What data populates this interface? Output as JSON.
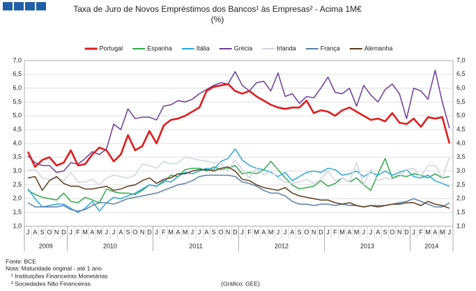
{
  "chart_data": {
    "type": "line",
    "title": "Taxa de Juro de Novos Empréstimos dos Bancos¹ às Empresas² - Acima 1M€",
    "subtitle": "(%)",
    "categories": [
      "J",
      "A",
      "S",
      "O",
      "N",
      "D",
      "J",
      "F",
      "M",
      "A",
      "M",
      "J",
      "J",
      "A",
      "S",
      "O",
      "N",
      "D",
      "J",
      "F",
      "M",
      "A",
      "M",
      "J",
      "J",
      "A",
      "S",
      "O",
      "N",
      "D",
      "J",
      "F",
      "M",
      "A",
      "M",
      "J",
      "J",
      "A",
      "S",
      "O",
      "N",
      "D",
      "J",
      "F",
      "M",
      "A",
      "M",
      "J",
      "J",
      "A",
      "S",
      "O",
      "N",
      "D",
      "J",
      "F",
      "M",
      "A",
      "M",
      "J"
    ],
    "year_spans": [
      {
        "label": "2009",
        "months": 6
      },
      {
        "label": "2010",
        "months": 12
      },
      {
        "label": "2011",
        "months": 12
      },
      {
        "label": "2012",
        "months": 12
      },
      {
        "label": "2013",
        "months": 12
      },
      {
        "label": "2014",
        "months": 6
      }
    ],
    "series": [
      {
        "name": "Portugal",
        "color": "#e31b1b",
        "values": [
          3.7,
          3.15,
          3.4,
          3.5,
          3.2,
          3.3,
          3.75,
          3.2,
          3.25,
          3.6,
          3.85,
          3.75,
          3.35,
          3.6,
          4.3,
          3.75,
          3.9,
          4.45,
          4.0,
          4.65,
          4.85,
          4.9,
          5.0,
          5.15,
          5.3,
          5.9,
          6.05,
          6.1,
          6.15,
          5.9,
          5.8,
          5.9,
          5.7,
          5.55,
          5.4,
          5.3,
          5.25,
          5.3,
          5.3,
          5.55,
          5.1,
          5.2,
          5.15,
          5.0,
          5.2,
          5.3,
          5.15,
          5.0,
          4.85,
          4.9,
          4.8,
          5.1,
          4.75,
          4.7,
          4.9,
          4.6,
          4.95,
          4.9,
          4.95,
          4.0
        ]
      },
      {
        "name": "Espanha",
        "color": "#2eaa4a",
        "values": [
          2.3,
          2.15,
          2.05,
          2.0,
          1.95,
          2.2,
          1.9,
          1.85,
          2.05,
          1.95,
          1.85,
          2.35,
          2.25,
          2.2,
          2.2,
          2.15,
          2.3,
          2.5,
          2.45,
          2.6,
          2.85,
          2.8,
          3.05,
          3.1,
          3.1,
          3.0,
          3.15,
          3.05,
          3.1,
          3.2,
          2.9,
          2.95,
          2.9,
          3.05,
          3.35,
          3.05,
          2.75,
          2.5,
          2.35,
          2.4,
          2.45,
          2.65,
          2.45,
          2.55,
          2.75,
          2.6,
          2.75,
          2.5,
          2.3,
          2.9,
          3.45,
          2.75,
          2.85,
          2.8,
          2.9,
          2.85,
          2.75,
          2.9,
          2.75,
          2.8
        ]
      },
      {
        "name": "Itália",
        "color": "#2aa7dc",
        "values": [
          2.35,
          2.0,
          1.7,
          1.75,
          1.8,
          1.8,
          1.65,
          1.5,
          1.65,
          1.9,
          1.55,
          1.85,
          2.05,
          2.0,
          2.1,
          2.2,
          2.35,
          2.5,
          2.45,
          2.65,
          2.6,
          2.8,
          2.95,
          2.9,
          3.0,
          3.1,
          3.05,
          3.35,
          3.45,
          3.8,
          3.4,
          3.2,
          3.1,
          3.05,
          2.95,
          2.8,
          2.95,
          2.65,
          2.8,
          2.95,
          3.0,
          2.95,
          3.1,
          3.05,
          2.85,
          2.9,
          3.0,
          2.8,
          2.95,
          2.85,
          3.0,
          2.85,
          2.95,
          3.05,
          2.8,
          2.75,
          2.85,
          2.65,
          2.55,
          2.45
        ]
      },
      {
        "name": "Grécia",
        "color": "#6a3d9a",
        "values": [
          3.55,
          3.3,
          3.2,
          3.2,
          2.95,
          3.0,
          3.3,
          3.25,
          3.45,
          3.7,
          3.6,
          3.8,
          4.7,
          4.5,
          5.25,
          4.9,
          4.95,
          4.95,
          4.85,
          5.35,
          5.4,
          5.55,
          5.5,
          5.6,
          5.8,
          5.95,
          6.1,
          6.2,
          6.15,
          6.6,
          6.1,
          5.9,
          6.2,
          6.25,
          5.9,
          6.55,
          5.7,
          5.8,
          5.45,
          5.7,
          5.65,
          6.0,
          6.4,
          5.85,
          5.8,
          6.0,
          5.35,
          6.1,
          5.75,
          5.5,
          5.95,
          6.15,
          5.8,
          4.9,
          6.0,
          5.9,
          5.6,
          6.65,
          5.5,
          4.55
        ]
      },
      {
        "name": "Irlanda",
        "color": "#cfd4dd",
        "values": [
          3.05,
          3.05,
          2.75,
          2.7,
          2.75,
          2.65,
          2.95,
          2.6,
          2.6,
          2.7,
          2.5,
          2.75,
          2.85,
          2.8,
          2.75,
          2.85,
          3.25,
          3.2,
          3.1,
          3.35,
          3.25,
          3.3,
          3.5,
          3.45,
          3.4,
          3.35,
          3.3,
          3.3,
          3.0,
          3.4,
          3.05,
          2.75,
          3.1,
          2.85,
          3.0,
          2.75,
          2.6,
          2.55,
          2.6,
          2.7,
          2.55,
          2.7,
          3.0,
          2.65,
          2.75,
          2.6,
          3.3,
          2.5,
          3.05,
          2.65,
          2.75,
          2.7,
          2.8,
          3.05,
          3.1,
          2.8,
          3.2,
          3.2,
          2.75,
          3.5
        ]
      },
      {
        "name": "França",
        "color": "#5a7fa8",
        "values": [
          1.85,
          1.7,
          1.7,
          1.7,
          1.7,
          1.75,
          1.6,
          1.55,
          1.6,
          1.75,
          1.85,
          1.85,
          1.8,
          1.9,
          2.0,
          2.05,
          2.1,
          2.15,
          2.2,
          2.3,
          2.4,
          2.5,
          2.55,
          2.65,
          2.8,
          2.85,
          2.85,
          2.85,
          2.85,
          2.8,
          2.6,
          2.55,
          2.45,
          2.3,
          2.2,
          2.2,
          2.1,
          1.9,
          1.8,
          1.8,
          1.75,
          1.8,
          1.8,
          1.75,
          1.8,
          1.75,
          1.75,
          1.7,
          1.75,
          1.75,
          1.75,
          1.8,
          1.85,
          1.9,
          2.0,
          1.9,
          1.8,
          1.7,
          1.7,
          1.85
        ]
      },
      {
        "name": "Alemanha",
        "color": "#5a3a1a",
        "values": [
          2.75,
          2.8,
          2.3,
          2.65,
          2.8,
          2.55,
          2.45,
          2.45,
          2.35,
          2.35,
          2.4,
          2.45,
          2.3,
          2.35,
          2.45,
          2.5,
          2.65,
          2.75,
          2.55,
          2.7,
          2.75,
          2.9,
          2.9,
          3.0,
          3.05,
          3.05,
          3.0,
          3.1,
          3.15,
          3.0,
          2.7,
          2.65,
          2.5,
          2.4,
          2.35,
          2.3,
          2.4,
          2.2,
          2.1,
          2.05,
          2.0,
          1.95,
          1.95,
          1.85,
          1.8,
          1.85,
          1.75,
          1.7,
          1.75,
          1.7,
          1.75,
          1.8,
          1.8,
          1.85,
          1.85,
          1.75,
          1.9,
          1.8,
          1.75,
          1.65
        ]
      }
    ],
    "ylim": [
      1,
      7
    ],
    "yticks": [
      {
        "value": 1,
        "label": "1,0"
      },
      {
        "value": 1.5,
        "label": "1,5"
      },
      {
        "value": 2,
        "label": "2,0"
      },
      {
        "value": 2.5,
        "label": "2,5"
      },
      {
        "value": 3,
        "label": "3,0"
      },
      {
        "value": 3.5,
        "label": "3,5"
      },
      {
        "value": 4,
        "label": "4,0"
      },
      {
        "value": 4.5,
        "label": "4,5"
      },
      {
        "value": 5,
        "label": "5,0"
      },
      {
        "value": 5.5,
        "label": "5,5"
      },
      {
        "value": 6,
        "label": "6,0"
      },
      {
        "value": 6.5,
        "label": "6,5"
      },
      {
        "value": 7,
        "label": "7,0"
      }
    ],
    "grid": true,
    "legend": "top",
    "notes": [
      "Fonte: BCE",
      "Nota: Maturidade original - até 1 ano",
      "¹ Instituições Financeiras Monetárias",
      "² Sociedades Não Financeiras"
    ],
    "credit": "(Gráfico: GEE)"
  }
}
